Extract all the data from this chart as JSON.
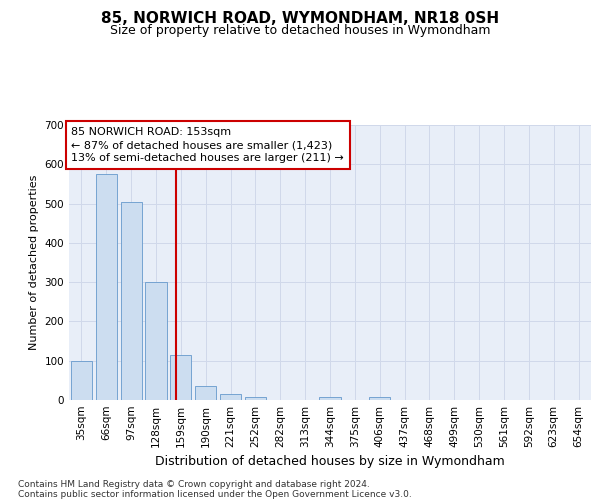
{
  "title": "85, NORWICH ROAD, WYMONDHAM, NR18 0SH",
  "subtitle": "Size of property relative to detached houses in Wymondham",
  "xlabel": "Distribution of detached houses by size in Wymondham",
  "ylabel": "Number of detached properties",
  "categories": [
    "35sqm",
    "66sqm",
    "97sqm",
    "128sqm",
    "159sqm",
    "190sqm",
    "221sqm",
    "252sqm",
    "282sqm",
    "313sqm",
    "344sqm",
    "375sqm",
    "406sqm",
    "437sqm",
    "468sqm",
    "499sqm",
    "530sqm",
    "561sqm",
    "592sqm",
    "623sqm",
    "654sqm"
  ],
  "values": [
    100,
    575,
    505,
    300,
    115,
    35,
    15,
    8,
    0,
    0,
    8,
    0,
    8,
    0,
    0,
    0,
    0,
    0,
    0,
    0,
    0
  ],
  "bar_color": "#ccddf0",
  "bar_edge_color": "#6699cc",
  "grid_color": "#d0d8ea",
  "bg_color": "#e8eef8",
  "ylim": [
    0,
    700
  ],
  "yticks": [
    0,
    100,
    200,
    300,
    400,
    500,
    600,
    700
  ],
  "vline_color": "#cc0000",
  "annotation_text": "85 NORWICH ROAD: 153sqm\n← 87% of detached houses are smaller (1,423)\n13% of semi-detached houses are larger (211) →",
  "annotation_box_color": "#ffffff",
  "annotation_box_edge": "#cc0000",
  "footer": "Contains HM Land Registry data © Crown copyright and database right 2024.\nContains public sector information licensed under the Open Government Licence v3.0.",
  "title_fontsize": 11,
  "subtitle_fontsize": 9,
  "xlabel_fontsize": 9,
  "ylabel_fontsize": 8,
  "tick_fontsize": 7.5,
  "annotation_fontsize": 8,
  "footer_fontsize": 6.5
}
